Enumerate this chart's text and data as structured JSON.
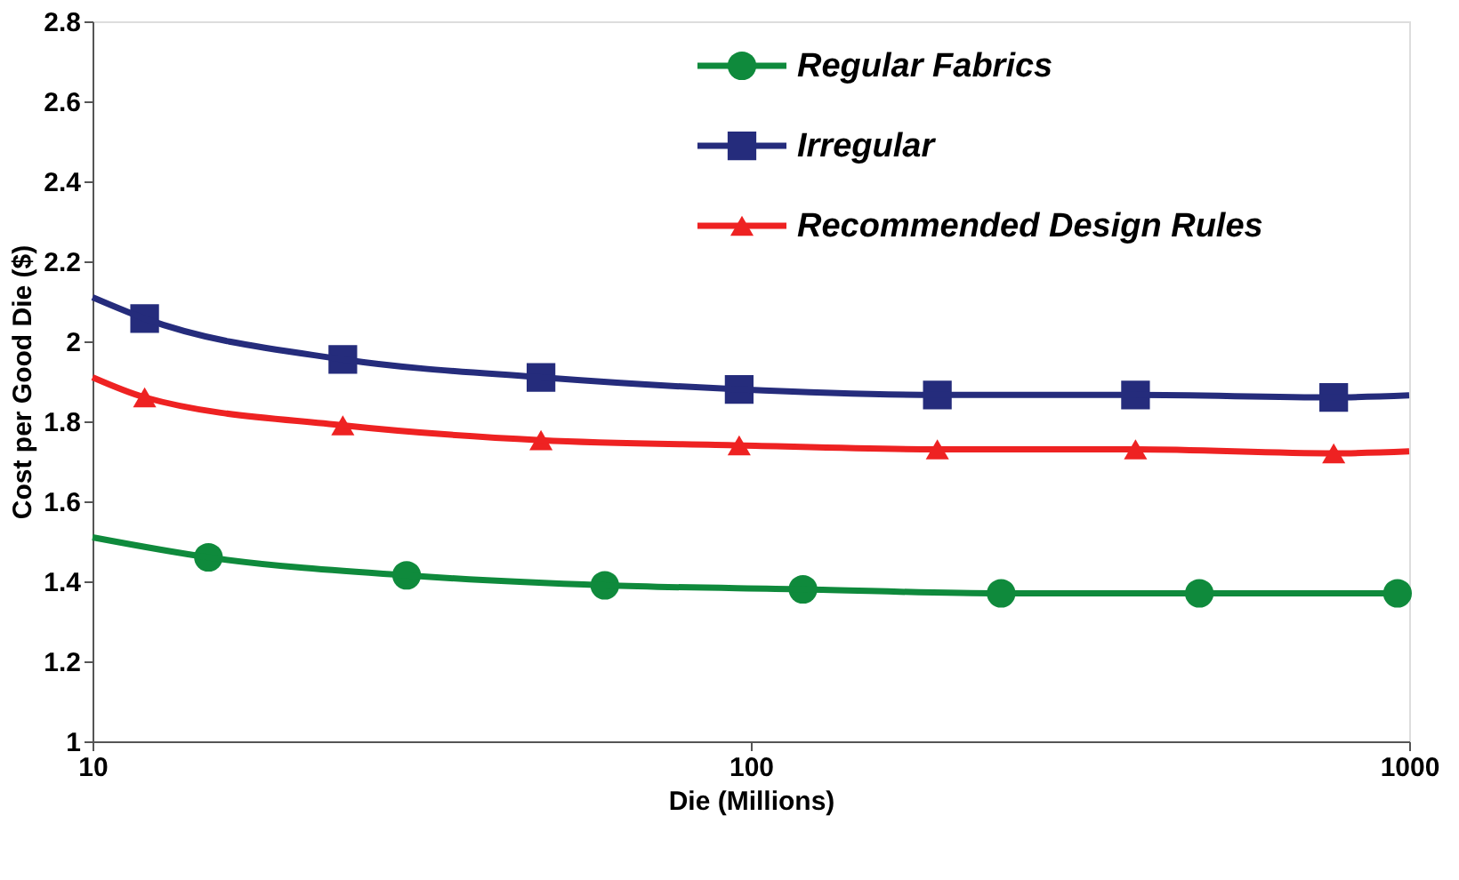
{
  "chart_data": {
    "type": "line",
    "xlabel": "Die (Millions)",
    "ylabel": "Cost per Good Die ($)",
    "log": "x",
    "xlim": [
      10,
      1000
    ],
    "xticks": [
      10,
      100,
      1000
    ],
    "ylim": [
      1,
      2.8
    ],
    "yticks": [
      1,
      1.2,
      1.4,
      1.6,
      1.8,
      2,
      2.2,
      2.4,
      2.6,
      2.8
    ],
    "grid": false,
    "legend": "top right",
    "series": [
      {
        "name": "Regular Fabrics",
        "color": "#0f8a3c",
        "type": "scatter",
        "marker": "circle",
        "x": [
          15,
          30,
          60,
          120,
          240,
          480,
          960
        ],
        "values": [
          1.46,
          1.415,
          1.39,
          1.38,
          1.37,
          1.37,
          1.37
        ]
      },
      {
        "name": "Irregular",
        "color": "#252c7c",
        "type": "scatter",
        "marker": "square",
        "x": [
          12,
          24,
          48,
          96,
          192,
          384,
          768
        ],
        "values": [
          2.057,
          1.955,
          1.91,
          1.88,
          1.866,
          1.866,
          1.86
        ]
      },
      {
        "name": "Recommended Design Rules",
        "color": "#ee2222",
        "type": "scatter",
        "marker": "triangle",
        "x": [
          12,
          24,
          48,
          96,
          192,
          384,
          768
        ],
        "values": [
          1.86,
          1.79,
          1.753,
          1.74,
          1.73,
          1.73,
          1.72
        ]
      },
      {
        "color": "#0f8a3c",
        "marker": "none",
        "x": [
          10,
          15,
          30,
          60,
          120,
          240,
          480,
          960,
          1000
        ],
        "values": [
          1.51,
          1.46,
          1.415,
          1.39,
          1.38,
          1.37,
          1.37,
          1.37,
          1.37
        ]
      },
      {
        "color": "#252c7c",
        "marker": "none",
        "x": [
          10,
          12,
          24,
          48,
          96,
          192,
          384,
          768,
          1000
        ],
        "values": [
          2.11,
          2.057,
          1.955,
          1.91,
          1.88,
          1.866,
          1.866,
          1.86,
          1.865
        ]
      },
      {
        "color": "#ee2222",
        "marker": "none",
        "x": [
          10,
          12,
          24,
          48,
          96,
          192,
          384,
          768,
          1000
        ],
        "values": [
          1.91,
          1.86,
          1.79,
          1.753,
          1.74,
          1.73,
          1.73,
          1.72,
          1.725
        ]
      }
    ]
  }
}
